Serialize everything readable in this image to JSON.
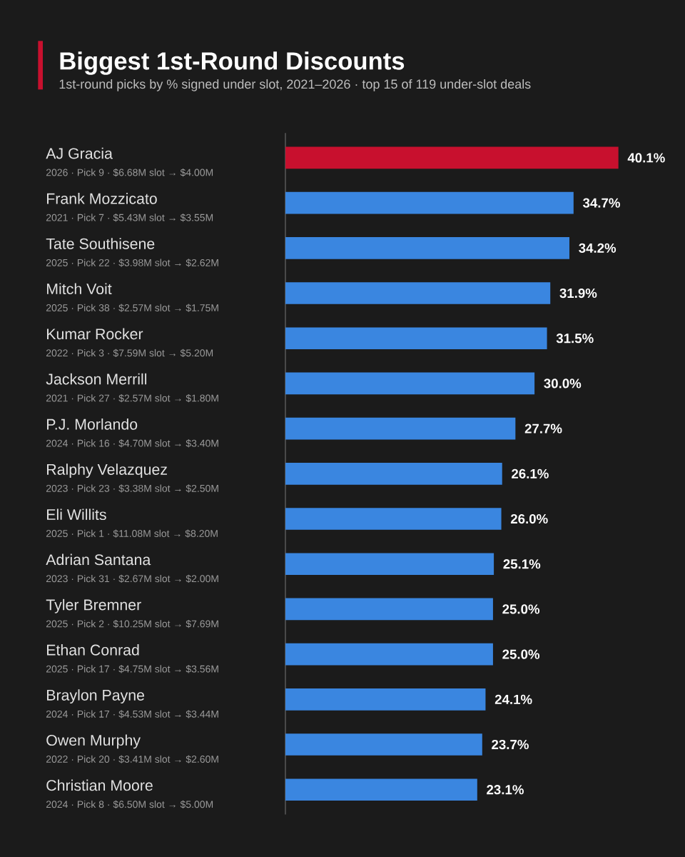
{
  "chart_data": {
    "type": "bar",
    "orientation": "horizontal",
    "title": "Biggest 1st-Round Discounts",
    "subtitle": "1st-round picks by % signed under slot, 2021–2026 · top 15 of 119 under-slot deals",
    "categories": [
      "AJ Gracia",
      "Frank Mozzicato",
      "Tate Southisene",
      "Mitch Voit",
      "Kumar Rocker",
      "Jackson Merrill",
      "P.J. Morlando",
      "Ralphy Velazquez",
      "Eli Willits",
      "Adrian Santana",
      "Tyler Bremner",
      "Ethan Conrad",
      "Braylon Payne",
      "Owen Murphy",
      "Christian Moore"
    ],
    "annotations": [
      "2026 · Pick 9 · $6.68M slot → $4.00M",
      "2021 · Pick 7 · $5.43M slot → $3.55M",
      "2025 · Pick 22 · $3.98M slot → $2.62M",
      "2025 · Pick 38 · $2.57M slot → $1.75M",
      "2022 · Pick 3 · $7.59M slot → $5.20M",
      "2021 · Pick 27 · $2.57M slot → $1.80M",
      "2024 · Pick 16 · $4.70M slot → $3.40M",
      "2023 · Pick 23 · $3.38M slot → $2.50M",
      "2025 · Pick 1 · $11.08M slot → $8.20M",
      "2023 · Pick 31 · $2.67M slot → $2.00M",
      "2025 · Pick 2 · $10.25M slot → $7.69M",
      "2025 · Pick 17 · $4.75M slot → $3.56M",
      "2024 · Pick 17 · $4.53M slot → $3.44M",
      "2022 · Pick 20 · $3.41M slot → $2.60M",
      "2024 · Pick 8 · $6.50M slot → $5.00M"
    ],
    "values": [
      40.1,
      34.7,
      34.2,
      31.9,
      31.5,
      30.0,
      27.7,
      26.1,
      26.0,
      25.1,
      25.0,
      25.0,
      24.1,
      23.7,
      23.1
    ],
    "value_labels": [
      "40.1%",
      "34.7%",
      "34.2%",
      "31.9%",
      "31.5%",
      "30.0%",
      "27.7%",
      "26.1%",
      "26.0%",
      "25.1%",
      "25.0%",
      "25.0%",
      "24.1%",
      "23.7%",
      "23.1%"
    ],
    "colors": [
      "#c8102e",
      "#3a86e0",
      "#3a86e0",
      "#3a86e0",
      "#3a86e0",
      "#3a86e0",
      "#3a86e0",
      "#3a86e0",
      "#3a86e0",
      "#3a86e0",
      "#3a86e0",
      "#3a86e0",
      "#3a86e0",
      "#3a86e0",
      "#3a86e0"
    ]
  }
}
